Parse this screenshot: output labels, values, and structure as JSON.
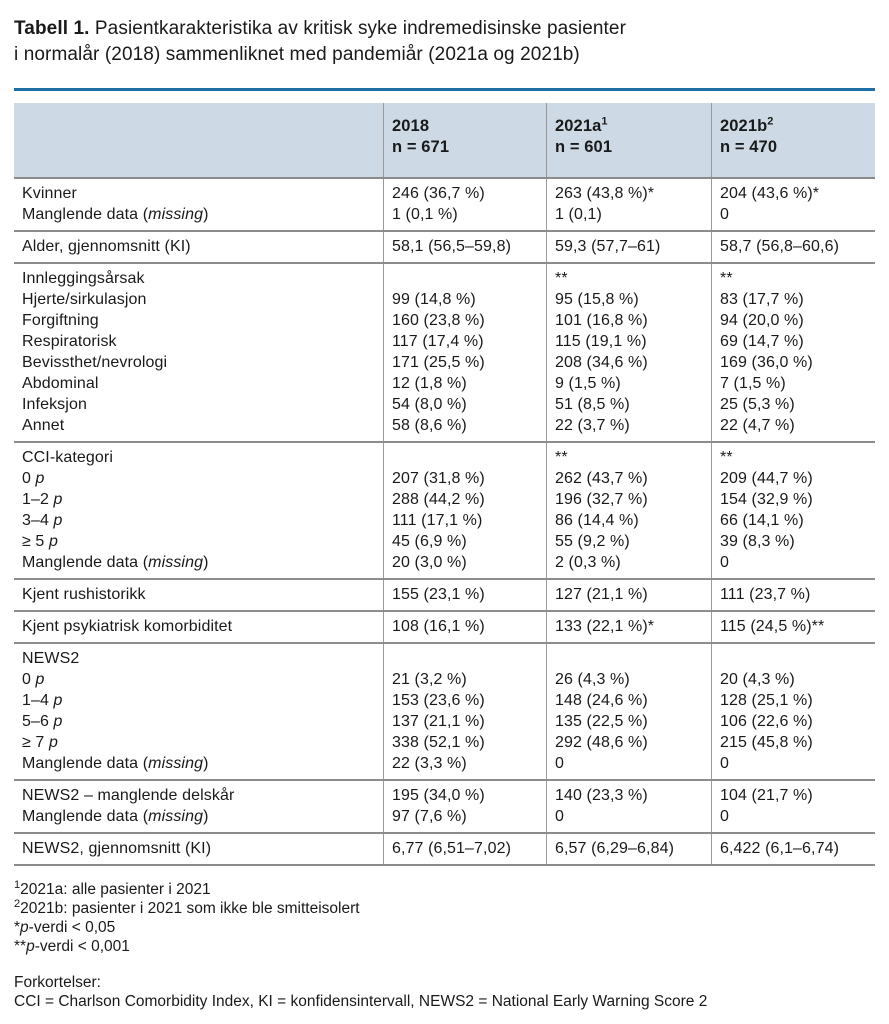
{
  "title": {
    "label": "Tabell 1.",
    "line1": " Pasientkarakteristika av kritisk syke indremedisinske pasienter",
    "line2": "i normalår (2018) sammenliknet med pandemiår (2021a og 2021b)"
  },
  "colors": {
    "accent_blue": "#1d6fa5",
    "header_bg": "#cddae5",
    "rule_gray": "#8c8c8c",
    "text": "#1a1a1a"
  },
  "table": {
    "columns": [
      {
        "label": "2018",
        "sup": "",
        "n": "n = 671"
      },
      {
        "label": "2021a",
        "sup": "1",
        "n": "n = 601"
      },
      {
        "label": "2021b",
        "sup": "2",
        "n": "n = 470"
      }
    ],
    "rows": [
      {
        "labels": [
          "Kvinner",
          "Manglende data (missing)"
        ],
        "values": [
          [
            "246 (36,7 %)",
            "1 (0,1 %)"
          ],
          [
            "263 (43,8 %)*",
            "1 (0,1)"
          ],
          [
            "204 (43,6 %)*",
            "0"
          ]
        ]
      },
      {
        "labels": [
          "Alder, gjennomsnitt (KI)"
        ],
        "values": [
          [
            "58,1 (56,5–59,8)"
          ],
          [
            "59,3 (57,7–61)"
          ],
          [
            "58,7 (56,8–60,6)"
          ]
        ]
      },
      {
        "labels": [
          "Innleggingsårsak",
          "Hjerte/sirkulasjon",
          "Forgiftning",
          "Respiratorisk",
          "Bevissthet/nevrologi",
          "Abdominal",
          "Infeksjon",
          "Annet"
        ],
        "values": [
          [
            "",
            "99 (14,8 %)",
            "160 (23,8 %)",
            "117 (17,4 %)",
            "171 (25,5 %)",
            "12 (1,8 %)",
            "54 (8,0 %)",
            "58 (8,6 %)"
          ],
          [
            "**",
            "95 (15,8 %)",
            "101 (16,8 %)",
            "115 (19,1 %)",
            "208 (34,6 %)",
            "9 (1,5 %)",
            "51 (8,5 %)",
            "22 (3,7 %)"
          ],
          [
            "**",
            "83 (17,7 %)",
            "94 (20,0 %)",
            "69 (14,7 %)",
            "169 (36,0 %)",
            "7 (1,5 %)",
            "25 (5,3 %)",
            "22 (4,7 %)"
          ]
        ]
      },
      {
        "labels": [
          "CCI-kategori",
          "0 p",
          "1–2 p",
          "3–4 p",
          "≥ 5 p",
          "Manglende data (missing)"
        ],
        "values": [
          [
            "",
            "207 (31,8 %)",
            "288 (44,2 %)",
            "111 (17,1 %)",
            "45 (6,9 %)",
            "20 (3,0 %)"
          ],
          [
            "**",
            "262 (43,7 %)",
            "196 (32,7 %)",
            "86 (14,4 %)",
            "55 (9,2 %)",
            "2 (0,3 %)"
          ],
          [
            "**",
            "209 (44,7 %)",
            "154 (32,9 %)",
            "66 (14,1 %)",
            "39 (8,3 %)",
            "0"
          ]
        ]
      },
      {
        "labels": [
          "Kjent rushistorikk"
        ],
        "values": [
          [
            "155 (23,1 %)"
          ],
          [
            "127 (21,1 %)"
          ],
          [
            "111 (23,7 %)"
          ]
        ]
      },
      {
        "labels": [
          "Kjent psykiatrisk komorbiditet"
        ],
        "values": [
          [
            "108 (16,1 %)"
          ],
          [
            "133 (22,1 %)*"
          ],
          [
            "115 (24,5 %)**"
          ]
        ]
      },
      {
        "labels": [
          "NEWS2",
          "0 p",
          "1–4 p",
          "5–6 p",
          "≥ 7 p",
          "Manglende data (missing)"
        ],
        "values": [
          [
            "",
            "21 (3,2 %)",
            "153 (23,6 %)",
            "137 (21,1 %)",
            "338 (52,1 %)",
            "22 (3,3 %)"
          ],
          [
            "",
            "26 (4,3 %)",
            "148 (24,6 %)",
            "135 (22,5 %)",
            "292 (48,6 %)",
            "0"
          ],
          [
            "",
            "20 (4,3 %)",
            "128 (25,1 %)",
            "106 (22,6 %)",
            "215 (45,8 %)",
            "0"
          ]
        ]
      },
      {
        "labels": [
          "NEWS2 – manglende delskår",
          "Manglende data (missing)"
        ],
        "values": [
          [
            "195 (34,0 %)",
            "97 (7,6 %)"
          ],
          [
            "140 (23,3 %)",
            "0"
          ],
          [
            "104 (21,7 %)",
            "0"
          ]
        ]
      },
      {
        "labels": [
          "NEWS2, gjennomsnitt (KI)"
        ],
        "values": [
          [
            "6,77 (6,51–7,02)"
          ],
          [
            "6,57 (6,29–6,84)"
          ],
          [
            "6,422 (6,1–6,74)"
          ]
        ]
      }
    ]
  },
  "footnotes": [
    {
      "sup": "1",
      "text": "2021a: alle pasienter i 2021"
    },
    {
      "sup": "2",
      "text": "2021b: pasienter i 2021 som ikke ble smitteisolert"
    },
    {
      "sup": "",
      "text": "*p-verdi < 0,05"
    },
    {
      "sup": "",
      "text": "**p-verdi < 0,001"
    }
  ],
  "abbreviations": {
    "heading": "Forkortelser:",
    "text": "CCI = Charlson Comorbidity Index, KI = konfidensintervall, NEWS2 = National Early Warning Score 2"
  }
}
